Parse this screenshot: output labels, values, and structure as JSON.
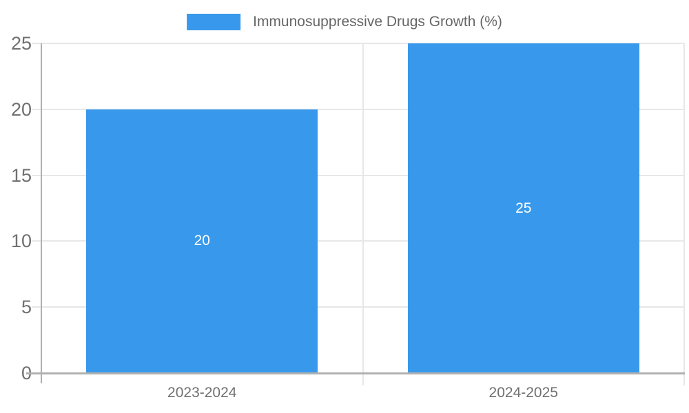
{
  "chart_data": {
    "type": "bar",
    "title": "",
    "legend_position": "top",
    "categories": [
      "2023-2024",
      "2024-2025"
    ],
    "series": [
      {
        "name": "Immunosuppressive Drugs Growth (%)",
        "values": [
          20,
          25
        ],
        "data_labels": [
          "20",
          "25"
        ]
      }
    ],
    "xlabel": "",
    "ylabel": "",
    "ylim": [
      0,
      25
    ],
    "yticks": [
      0,
      5,
      10,
      15,
      20,
      25
    ],
    "grid": true,
    "colors": {
      "bar": "#3899ec",
      "gridline": "#e7e7e7",
      "axis_line": "#b0b0b0",
      "tick_label": "#707070",
      "legend_text": "#666666",
      "data_label": "#ffffff",
      "background": "#ffffff"
    }
  }
}
